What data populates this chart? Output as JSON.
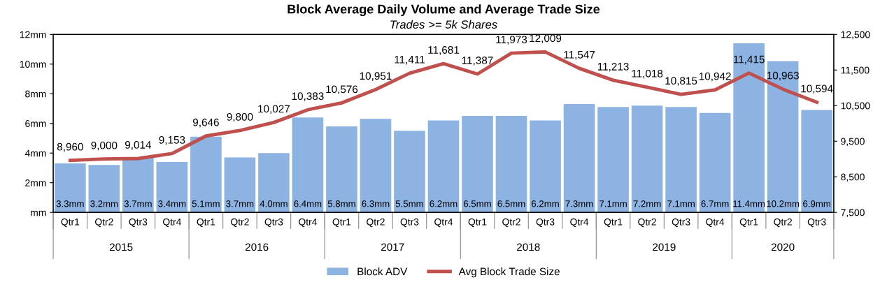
{
  "chart_data": {
    "type": "bar",
    "title": "Block Average Daily Volume and Average Trade Size",
    "subtitle": "Trades >= 5k Shares",
    "categories": [
      "Qtr1",
      "Qtr2",
      "Qtr3",
      "Qtr4",
      "Qtr1",
      "Qtr2",
      "Qtr3",
      "Qtr4",
      "Qtr1",
      "Qtr2",
      "Qtr3",
      "Qtr4",
      "Qtr1",
      "Qtr2",
      "Qtr3",
      "Qtr4",
      "Qtr1",
      "Qtr2",
      "Qtr3",
      "Qtr4",
      "Qtr1",
      "Qtr2",
      "Qtr3"
    ],
    "annotations": [
      "2015",
      "2016",
      "2017",
      "2018",
      "2019",
      "2020"
    ],
    "series": [
      {
        "name": "Block ADV",
        "color": "#8db3e2",
        "values": [
          3.3,
          3.2,
          3.7,
          3.4,
          5.1,
          3.7,
          4.0,
          6.4,
          5.8,
          6.3,
          5.5,
          6.2,
          6.5,
          6.5,
          6.2,
          7.3,
          7.1,
          7.2,
          7.1,
          6.7,
          11.4,
          10.2,
          6.9
        ],
        "value_labels": [
          "3.3mm",
          "3.2mm",
          "3.7mm",
          "3.4mm",
          "5.1mm",
          "3.7mm",
          "4.0mm",
          "6.4mm",
          "5.8mm",
          "6.3mm",
          "5.5mm",
          "6.2mm",
          "6.5mm",
          "6.5mm",
          "6.2mm",
          "7.3mm",
          "7.1mm",
          "7.2mm",
          "7.1mm",
          "6.7mm",
          "11.4mm",
          "10.2mm",
          "6.9mm"
        ]
      },
      {
        "name": "Avg Block Trade Size",
        "type": "line",
        "axis": "y2",
        "color": "#c0504d",
        "values": [
          8960,
          9000,
          9014,
          9153,
          9646,
          9800,
          10027,
          10383,
          10576,
          10951,
          11411,
          11681,
          11387,
          11973,
          12009,
          11547,
          11213,
          11018,
          10815,
          10942,
          11415,
          10963,
          10594
        ],
        "value_labels": [
          "8,960",
          "9,000",
          "9,014",
          "9,153",
          "9,646",
          "9,800",
          "10,027",
          "10,383",
          "10,576",
          "10,951",
          "11,411",
          "11,681",
          "11,387",
          "11,973",
          "12,009",
          "11,547",
          "11,213",
          "11,018",
          "10,815",
          "10,942",
          "11,415",
          "10,963",
          "10,594"
        ]
      }
    ],
    "ylim": [
      0,
      12
    ],
    "yticks": [
      {
        "value": 0,
        "label": "mm"
      },
      {
        "value": 2,
        "label": "2mm"
      },
      {
        "value": 4,
        "label": "4mm"
      },
      {
        "value": 6,
        "label": "6mm"
      },
      {
        "value": 8,
        "label": "8mm"
      },
      {
        "value": 10,
        "label": "10mm"
      },
      {
        "value": 12,
        "label": "12mm"
      }
    ],
    "y2lim": [
      7500,
      12500
    ],
    "y2ticks": [
      {
        "value": 7500,
        "label": "7,500"
      },
      {
        "value": 8500,
        "label": "8,500"
      },
      {
        "value": 9500,
        "label": "9,500"
      },
      {
        "value": 10500,
        "label": "10,500"
      },
      {
        "value": 11500,
        "label": "11,500"
      },
      {
        "value": 12500,
        "label": "12,500"
      }
    ],
    "legend": "bottom",
    "marker": "none"
  }
}
